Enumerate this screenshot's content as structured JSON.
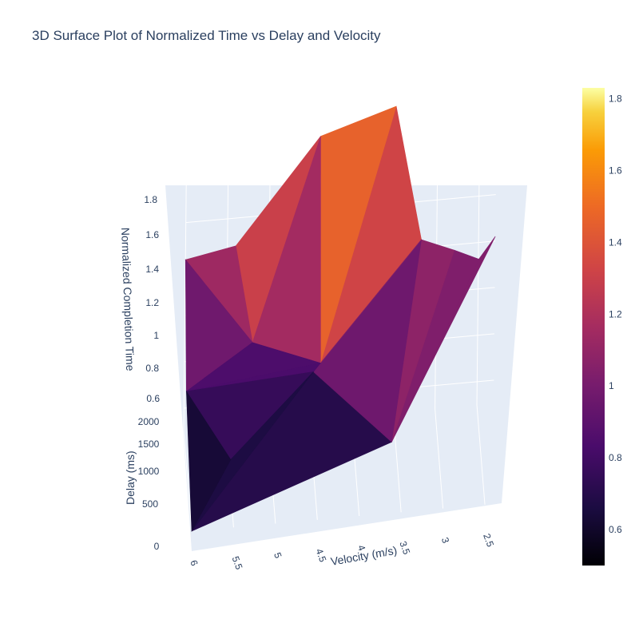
{
  "chart_data": {
    "type": "surface",
    "title": "3D Surface Plot of Normalized Time vs Delay and Velocity",
    "xlabel": "Velocity (m/s)",
    "ylabel": "Delay (ms)",
    "zlabel": "Normalized Completion Time",
    "colorscale": "inferno",
    "x_ticks": [
      "6",
      "5.5",
      "5",
      "4.5",
      "4",
      "3.5",
      "3",
      "2.5"
    ],
    "y_ticks": [
      "0",
      "500",
      "1000",
      "1500",
      "2000"
    ],
    "z_ticks": [
      "0.6",
      "0.8",
      "1",
      "1.2",
      "1.4",
      "1.6",
      "1.8"
    ],
    "colorbar_ticks": [
      "0.6",
      "0.8",
      "1",
      "1.2",
      "1.4",
      "1.6",
      "1.8"
    ],
    "colorbar_range": [
      0.5,
      1.83
    ],
    "x_range": [
      2.3,
      6
    ],
    "y_range": [
      0,
      2000
    ],
    "z_range": [
      0.5,
      1.85
    ],
    "surface_points": [
      {
        "x": 6,
        "y": 0,
        "z": 0.5
      },
      {
        "x": 3.6,
        "y": 400,
        "z": 0.72
      },
      {
        "x": 2.3,
        "y": 2000,
        "z": 1.22
      },
      {
        "x": 2.5,
        "y": 1900,
        "z": 1.15
      },
      {
        "x": 2.8,
        "y": 1800,
        "z": 1.22
      },
      {
        "x": 3.2,
        "y": 1700,
        "z": 1.3
      },
      {
        "x": 3.5,
        "y": 2000,
        "z": 1.82
      },
      {
        "x": 4.4,
        "y": 2000,
        "z": 1.72
      },
      {
        "x": 5.4,
        "y": 2000,
        "z": 1.28
      },
      {
        "x": 6,
        "y": 2000,
        "z": 1.24
      },
      {
        "x": 6,
        "y": 1500,
        "z": 0.78
      },
      {
        "x": 4.4,
        "y": 1500,
        "z": 0.85
      },
      {
        "x": 5.2,
        "y": 1800,
        "z": 0.9
      },
      {
        "x": 4.5,
        "y": 1200,
        "z": 0.88
      },
      {
        "x": 5.5,
        "y": 800,
        "z": 0.62
      }
    ]
  }
}
